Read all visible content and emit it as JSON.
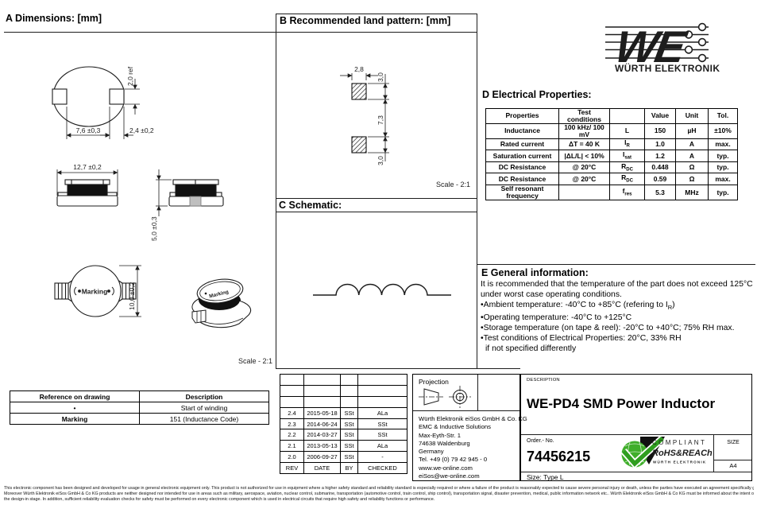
{
  "header": {
    "logo_brand": "WE",
    "logo_name": "WÜRTH ELEKTRONIK"
  },
  "section_a": {
    "heading": "A Dimensions: [mm]",
    "dim_pad_height": "2,0 ref",
    "dim_pad_distance": "7,6 ±0,3",
    "dim_pad_width": "2,4 ±0,2",
    "dim_width": "12,7 ±0,2",
    "dim_height": "5,0 ±0,3",
    "dim_length": "10,0 ±0,2",
    "marking_label": "Marking",
    "marking_label_3d": "Marking",
    "scale_note": "Scale - 2:1"
  },
  "section_b": {
    "heading": "B Recommended land pattern: [mm]",
    "dim_pad_w": "2,8",
    "dim_pad_h_top": "3,0",
    "dim_gap": "7,3",
    "dim_pad_h_bottom": "3,0",
    "scale_note": "Scale - 2:1"
  },
  "section_c": {
    "heading": "C Schematic:"
  },
  "section_d": {
    "heading": "D Electrical Properties:",
    "table": {
      "headers": [
        "Properties",
        "Test conditions",
        "",
        "Value",
        "Unit",
        "Tol."
      ],
      "rows": [
        {
          "property": "Inductance",
          "condition": "100 kHz/ 100 mV",
          "symbol": "L",
          "sub": "",
          "value": "150",
          "unit": "µH",
          "tol": "±10%"
        },
        {
          "property": "Rated current",
          "condition": "ΔT = 40 K",
          "symbol": "I",
          "sub": "R",
          "value": "1.0",
          "unit": "A",
          "tol": "max."
        },
        {
          "property": "Saturation current",
          "condition": "|ΔL/L| < 10%",
          "symbol": "I",
          "sub": "sat",
          "value": "1.2",
          "unit": "A",
          "tol": "typ."
        },
        {
          "property": "DC Resistance",
          "condition": "@ 20°C",
          "symbol": "R",
          "sub": "DC",
          "value": "0.448",
          "unit": "Ω",
          "tol": "typ."
        },
        {
          "property": "DC Resistance",
          "condition": "@ 20°C",
          "symbol": "R",
          "sub": "DC",
          "value": "0.59",
          "unit": "Ω",
          "tol": "max."
        },
        {
          "property": "Self resonant frequency",
          "condition": "",
          "symbol": "f",
          "sub": "res",
          "value": "5.3",
          "unit": "MHz",
          "tol": "typ."
        }
      ]
    }
  },
  "section_e": {
    "heading": "E General information:",
    "intro": [
      "It is recommended that the temperature of the part does not exceed 125°C",
      "under worst case operating conditions."
    ],
    "bullets": [
      {
        "pre": "Ambient temperature: -40°C to +85°C (refering to I",
        "sub": "R",
        "post": ")"
      },
      {
        "pre": "Operating temperature: -40°C to +125°C",
        "sub": "",
        "post": ""
      },
      {
        "pre": "Storage temperature (on tape & reel): -20°C to +40°C; 75% RH max.",
        "sub": "",
        "post": ""
      },
      {
        "pre": "Test conditions of Electrical Properties: 20°C, 33% RH",
        "sub": "",
        "post": ""
      }
    ],
    "footnote": "if not specified differently"
  },
  "reference_table": {
    "headers": [
      "Reference on drawing",
      "Description"
    ],
    "rows": [
      {
        "ref": "•",
        "desc": "Start of winding",
        "ref_bold": false
      },
      {
        "ref": "Marking",
        "desc": "151 (Inductance Code)",
        "ref_bold": true
      }
    ]
  },
  "revision_table": {
    "empty_row_count": 3,
    "rows": [
      {
        "rev": "2.4",
        "date": "2015-05-18",
        "by": "SSt",
        "checked": "ALa"
      },
      {
        "rev": "2.3",
        "date": "2014-06-24",
        "by": "SSt",
        "checked": "SSt"
      },
      {
        "rev": "2.2",
        "date": "2014-03-27",
        "by": "SSt",
        "checked": "SSt"
      },
      {
        "rev": "2.1",
        "date": "2013-05-13",
        "by": "SSt",
        "checked": "ALa"
      },
      {
        "rev": "2.0",
        "date": "2006-09-27",
        "by": "SSt",
        "checked": "-"
      }
    ],
    "footer": {
      "rev": "REV",
      "date": "DATE",
      "by": "BY",
      "checked": "CHECKED"
    }
  },
  "projection": {
    "label": "Projection"
  },
  "company": {
    "address_lines": [
      "Würth Elektronik eiSos GmbH & Co. KG",
      "EMC & Inductive Solutions",
      "Max-Eyth-Str. 1",
      "74638 Waldenburg",
      "Germany",
      "Tel. +49 (0) 79 42 945 - 0",
      "www.we-online.com",
      "eiSos@we-online.com"
    ]
  },
  "title_block": {
    "description_label": "DESCRIPTION",
    "title": "WE-PD4 SMD Power Inductor",
    "order_label": "Order.- No.",
    "order_number": "74456215",
    "size_label": "SIZE",
    "size_value": "A4",
    "size_type": "Size: Type L",
    "rohs": {
      "compliant": "COMPLIANT",
      "name": "RoHS&REACh",
      "brand": "WÜRTH ELEKTRONIK"
    }
  },
  "colors": {
    "brand_red": "#e30613",
    "rohs_green": "#3fae2a",
    "line": "#1d1d1d"
  },
  "disclaimer": [
    "This electronic component has been designed and developed for usage in general electronic equipment only. This product is not authorized for use in equipment where a higher safety standard and reliability standard is especially required or where a failure of the product is reasonably expected to cause severe personal injury or death, unless the parties have executed an agreement specifically governing such use.",
    "Moreover Würth Elektronik eiSos GmbH & Co KG products are neither designed nor intended for use in areas such as military, aerospace, aviation, nuclear control, submarine, transportation (automotive control, train control, ship control), transportation signal, disaster prevention, medical, public information network etc.. Würth Elektronik eiSos GmbH & Co KG must be informed about the intent of such usage before",
    "the design-in stage. In addition, sufficient reliability evaluation checks for safety must be performed on every electronic component which is used in electrical circuits that require high safety and reliability functions or performance."
  ]
}
